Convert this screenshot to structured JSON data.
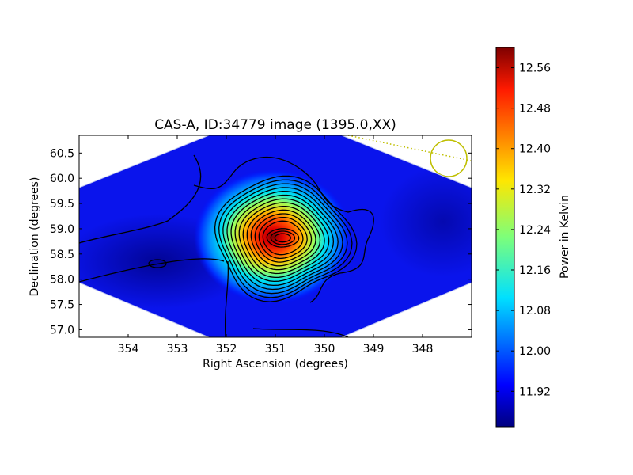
{
  "chart_data": {
    "type": "heatmap",
    "title": "CAS-A, ID:34779 image (1395.0,XX)",
    "xlabel": "Right Ascension (degrees)",
    "ylabel": "Declination (degrees)",
    "xlim": [
      355.0,
      347.0
    ],
    "ylim": [
      56.85,
      60.85
    ],
    "x_ticks": [
      "354",
      "353",
      "352",
      "351",
      "350",
      "349",
      "348"
    ],
    "x_tick_values": [
      354,
      353,
      352,
      351,
      350,
      349,
      348
    ],
    "y_ticks": [
      "57.0",
      "57.5",
      "58.0",
      "58.5",
      "59.0",
      "59.5",
      "60.0",
      "60.5"
    ],
    "y_tick_values": [
      57.0,
      57.5,
      58.0,
      58.5,
      59.0,
      59.5,
      60.0,
      60.5
    ],
    "colorbar": {
      "label": "Power in Kelvin",
      "range": [
        11.85,
        12.6
      ],
      "ticks": [
        "11.92",
        "12.00",
        "12.08",
        "12.16",
        "12.24",
        "12.32",
        "12.40",
        "12.48",
        "12.56"
      ],
      "tick_values": [
        11.92,
        12.0,
        12.08,
        12.16,
        12.24,
        12.32,
        12.4,
        12.48,
        12.56
      ],
      "colormap": "jet"
    },
    "sources": [
      {
        "ra": 350.85,
        "dec": 58.82,
        "peak": 12.6
      },
      {
        "ra": 353.2,
        "dec": 58.28,
        "peak": 11.87
      }
    ],
    "beam_marker": {
      "ra": 347.4,
      "dec": 60.38,
      "color": "#bfbf00"
    },
    "contour_levels": 16
  }
}
